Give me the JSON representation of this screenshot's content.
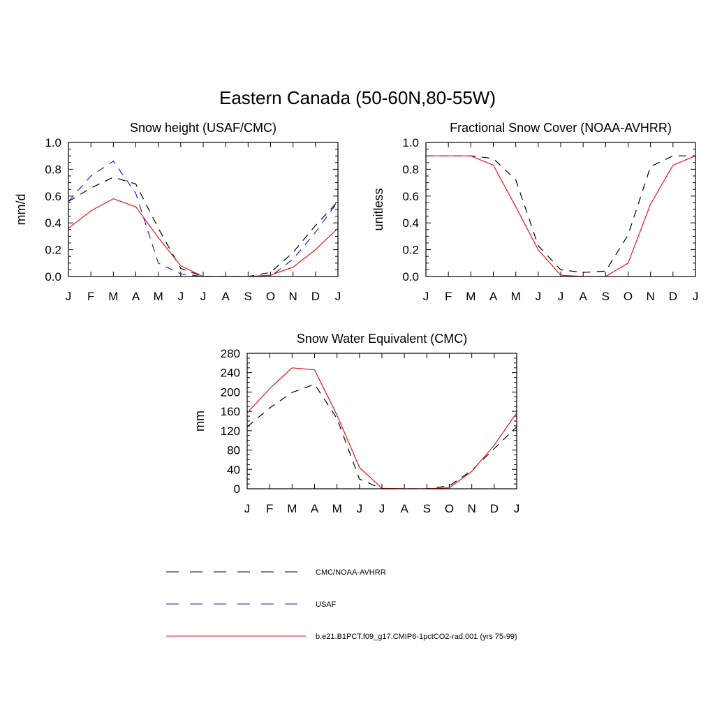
{
  "title": "Eastern Canada (50-60N,80-55W)",
  "colors": {
    "cmc": "#000000",
    "usaf": "#1f1fd6",
    "model": "#e8141c"
  },
  "chart_data": [
    {
      "type": "line",
      "title": "Snow height (USAF/CMC)",
      "ylabel": "mm/d",
      "xlabel": "",
      "x": [
        "J",
        "F",
        "M",
        "A",
        "M",
        "J",
        "J",
        "A",
        "S",
        "O",
        "N",
        "D",
        "J"
      ],
      "ylim": [
        0,
        1.0
      ],
      "yticks": [
        "0.0",
        "0.2",
        "0.4",
        "0.6",
        "0.8",
        "1.0"
      ],
      "yticks_values": [
        0,
        0.2,
        0.4,
        0.6,
        0.8,
        1.0
      ],
      "series": [
        {
          "name": "CMC/NOAA-AVHRR",
          "style": "dashed",
          "color": "#000000",
          "values": [
            0.56,
            0.66,
            0.74,
            0.69,
            0.36,
            0.06,
            0.0,
            0.0,
            0.0,
            0.03,
            0.18,
            0.38,
            0.56
          ]
        },
        {
          "name": "USAF",
          "style": "dashed",
          "color": "#1f1fd6",
          "values": [
            0.56,
            0.75,
            0.86,
            0.62,
            0.1,
            0.02,
            0.0,
            0.0,
            0.0,
            0.0,
            0.13,
            0.33,
            0.56
          ]
        },
        {
          "name": "b.e21.B1PCT.f09_g17.CMIP6-1pctCO2-rad.001 (yrs 75-99)",
          "style": "solid",
          "color": "#e8141c",
          "values": [
            0.36,
            0.49,
            0.58,
            0.52,
            0.29,
            0.08,
            0.0,
            0.0,
            0.0,
            0.01,
            0.07,
            0.2,
            0.36
          ]
        }
      ]
    },
    {
      "type": "line",
      "title": "Fractional Snow Cover (NOAA-AVHRR)",
      "ylabel": "unitless",
      "xlabel": "",
      "x": [
        "J",
        "F",
        "M",
        "A",
        "M",
        "J",
        "J",
        "A",
        "S",
        "O",
        "N",
        "D",
        "J"
      ],
      "ylim": [
        0,
        1.0
      ],
      "yticks": [
        "0.0",
        "0.2",
        "0.4",
        "0.6",
        "0.8",
        "1.0"
      ],
      "yticks_values": [
        0,
        0.2,
        0.4,
        0.6,
        0.8,
        1.0
      ],
      "series": [
        {
          "name": "CMC/NOAA-AVHRR",
          "style": "dashed",
          "color": "#000000",
          "values": [
            0.9,
            0.9,
            0.9,
            0.88,
            0.72,
            0.23,
            0.05,
            0.03,
            0.04,
            0.31,
            0.82,
            0.9,
            0.9
          ]
        },
        {
          "name": "b.e21.B1PCT.f09_g17.CMIP6-1pctCO2-rad.001 (yrs 75-99)",
          "style": "solid",
          "color": "#e8141c",
          "values": [
            0.9,
            0.9,
            0.9,
            0.83,
            0.52,
            0.2,
            0.01,
            0.0,
            0.0,
            0.1,
            0.54,
            0.83,
            0.9
          ]
        }
      ]
    },
    {
      "type": "line",
      "title": "Snow Water Equivalent (CMC)",
      "ylabel": "mm",
      "xlabel": "",
      "x": [
        "J",
        "F",
        "M",
        "A",
        "M",
        "J",
        "J",
        "A",
        "S",
        "O",
        "N",
        "D",
        "J"
      ],
      "ylim": [
        0,
        280
      ],
      "yticks": [
        "0",
        "40",
        "80",
        "120",
        "160",
        "200",
        "240",
        "280"
      ],
      "yticks_values": [
        0,
        40,
        80,
        120,
        160,
        200,
        240,
        280
      ],
      "series": [
        {
          "name": "CMC/NOAA-AVHRR",
          "style": "dashed",
          "color": "#000000",
          "values": [
            128,
            167,
            199,
            216,
            145,
            20,
            0,
            0,
            0,
            6,
            38,
            83,
            128
          ]
        },
        {
          "name": "b.e21.B1PCT.f09_g17.CMIP6-1pctCO2-rad.001 (yrs 75-99)",
          "style": "solid",
          "color": "#e8141c",
          "values": [
            157,
            207,
            250,
            246,
            152,
            44,
            1,
            0,
            0,
            2,
            36,
            90,
            157
          ]
        }
      ]
    }
  ],
  "legend": [
    {
      "label": "CMC/NOAA-AVHRR",
      "style": "dashed",
      "color": "#000000"
    },
    {
      "label": "USAF",
      "style": "dashed",
      "color": "#1f1fd6"
    },
    {
      "label": "b.e21.B1PCT.f09_g17.CMIP6-1pctCO2-rad.001 (yrs 75-99)",
      "style": "solid",
      "color": "#e8141c"
    }
  ]
}
